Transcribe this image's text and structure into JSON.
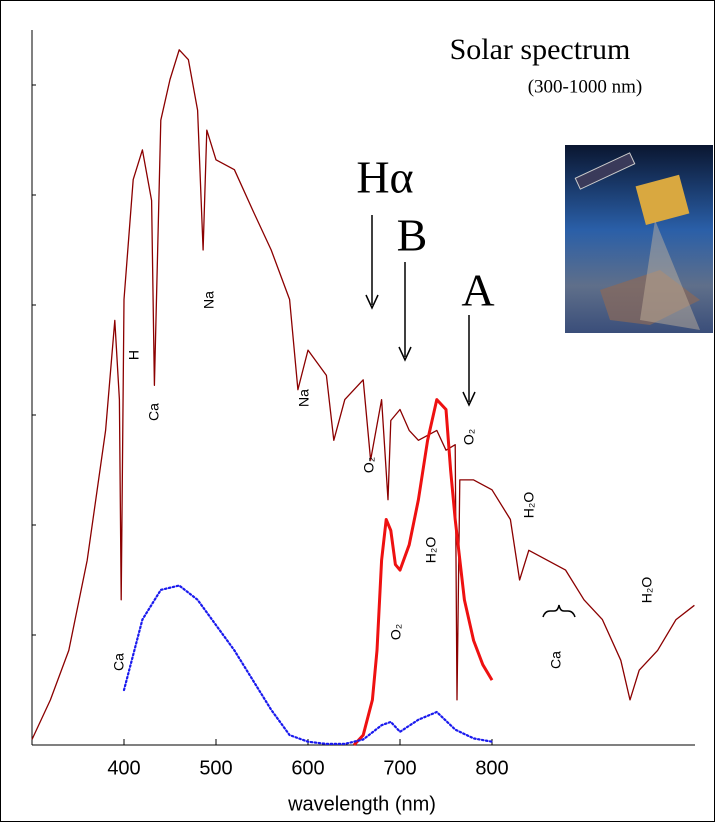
{
  "chart_data": {
    "type": "line",
    "title": "Solar spectrum",
    "subtitle": "(300-1000 nm)",
    "xlabel": "wavelength (nm)",
    "xlim": [
      300,
      1020
    ],
    "xticks": [
      400,
      500,
      600,
      700,
      800
    ],
    "ylim": [
      0,
      6.5
    ],
    "yticks": [
      1,
      2,
      3,
      4,
      5,
      6
    ],
    "series": [
      {
        "color": "#8b0000",
        "style": "solid",
        "x": [
          300,
          320,
          340,
          360,
          380,
          390,
          395,
          397,
          400,
          410,
          420,
          430,
          433,
          440,
          450,
          460,
          470,
          480,
          486,
          490,
          500,
          520,
          540,
          560,
          580,
          589,
          600,
          620,
          628,
          640,
          660,
          668,
          680,
          687,
          690,
          700,
          710,
          720,
          740,
          750,
          760,
          762,
          765,
          780,
          800,
          820,
          830,
          840,
          860,
          880,
          900,
          920,
          940,
          950,
          960,
          980,
          1000,
          1020
        ],
        "values": [
          0.05,
          0.41,
          0.86,
          1.68,
          2.86,
          3.86,
          3.14,
          1.32,
          4.05,
          5.14,
          5.41,
          4.95,
          3.27,
          5.68,
          6.05,
          6.32,
          6.23,
          5.77,
          4.5,
          5.59,
          5.32,
          5.23,
          4.86,
          4.5,
          4.05,
          3.23,
          3.59,
          3.36,
          2.77,
          3.14,
          3.32,
          2.59,
          3.14,
          2.23,
          2.95,
          3.05,
          2.86,
          2.77,
          2.86,
          2.68,
          2.73,
          0.41,
          2.41,
          2.41,
          2.32,
          2.05,
          1.5,
          1.77,
          1.68,
          1.59,
          1.32,
          1.14,
          0.77,
          0.41,
          0.68,
          0.86,
          1.14,
          1.27
        ]
      },
      {
        "color": "#ee1111",
        "style": "solid",
        "x": [
          650,
          660,
          670,
          675,
          680,
          685,
          690,
          695,
          700,
          710,
          720,
          730,
          740,
          750,
          755,
          760,
          770,
          780,
          790,
          800
        ],
        "values": [
          0,
          0.09,
          0.41,
          0.86,
          1.68,
          2.05,
          1.95,
          1.64,
          1.59,
          1.82,
          2.23,
          2.77,
          3.14,
          3.05,
          2.5,
          2.05,
          1.32,
          0.95,
          0.73,
          0.59
        ]
      },
      {
        "color": "#1a1aee",
        "style": "dotted",
        "x": [
          400,
          420,
          440,
          460,
          480,
          500,
          520,
          540,
          560,
          580,
          600,
          620,
          640,
          660,
          680,
          690,
          700,
          720,
          740,
          760,
          780,
          800
        ],
        "values": [
          0.5,
          1.14,
          1.41,
          1.45,
          1.32,
          1.09,
          0.86,
          0.59,
          0.32,
          0.09,
          0.03,
          0.01,
          0.01,
          0.05,
          0.18,
          0.21,
          0.12,
          0.23,
          0.3,
          0.14,
          0.06,
          0.03
        ]
      }
    ],
    "annotations": [
      "Hα",
      "B",
      "A",
      "H",
      "Ca",
      "Na",
      "Na",
      "O₂",
      "O₂",
      "H₂O",
      "O₂",
      "H₂O",
      "Ca",
      "Ca",
      "H₂O"
    ]
  }
}
